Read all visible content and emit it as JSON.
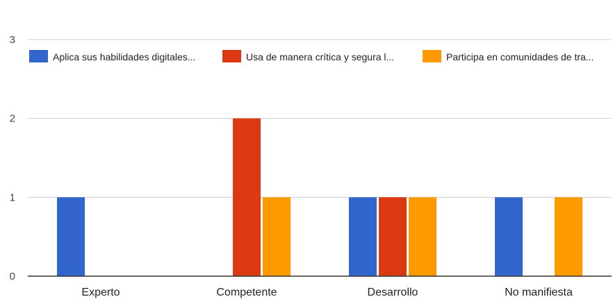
{
  "chart_data": {
    "type": "bar",
    "categories": [
      "Experto",
      "Competente",
      "Desarrollo",
      "No manifiesta"
    ],
    "series": [
      {
        "name": "Aplica sus habilidades digitales...",
        "color": "#3366cc",
        "values": [
          1,
          0,
          1,
          1
        ]
      },
      {
        "name": "Usa de manera crítica y segura l...",
        "color": "#dc3912",
        "values": [
          0,
          2,
          1,
          0
        ]
      },
      {
        "name": "Participa en comunidades de tra...",
        "color": "#ff9900",
        "values": [
          0,
          1,
          1,
          1
        ]
      }
    ],
    "ylim": [
      0,
      3
    ],
    "yticks": [
      0,
      1,
      2,
      3
    ],
    "grid": true,
    "legend_position": "top"
  }
}
